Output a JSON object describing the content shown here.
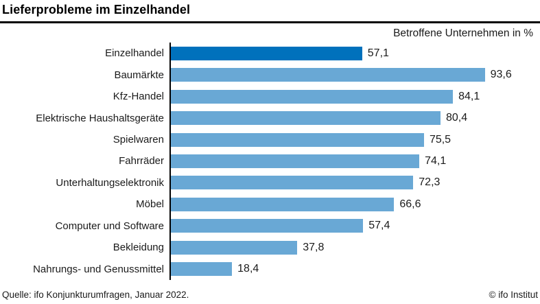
{
  "header": {
    "title": "Lieferprobleme im Einzelhandel"
  },
  "subtitle": "Betroffene Unternehmen in %",
  "footer": {
    "source": "Quelle: ifo Konjunkturumfragen, Januar 2022.",
    "copyright": "© ifo Institut"
  },
  "colors": {
    "highlight_bar": "#0071BC",
    "bar": "#69A8D5",
    "axis": "#000000",
    "title_rule": "#000000"
  },
  "chart_data": {
    "type": "bar",
    "orientation": "horizontal",
    "title": "Lieferprobleme im Einzelhandel",
    "xlabel": "Betroffene Unternehmen in %",
    "categories": [
      "Einzelhandel",
      "Baumärkte",
      "Kfz-Handel",
      "Elektrische Haushaltsgeräte",
      "Spielwaren",
      "Fahrräder",
      "Unterhaltungselektronik",
      "Möbel",
      "Computer und Software",
      "Bekleidung",
      "Nahrungs- und Genussmittel"
    ],
    "values": [
      57.1,
      93.6,
      84.1,
      80.4,
      75.5,
      74.1,
      72.3,
      66.6,
      57.4,
      37.8,
      18.4
    ],
    "display_values": [
      "57,1",
      "93,6",
      "84,1",
      "80,4",
      "75,5",
      "74,1",
      "72,3",
      "66,6",
      "57,4",
      "37,8",
      "18,4"
    ],
    "highlight_index": 0,
    "xlim": [
      0,
      100
    ],
    "grid": false,
    "legend": "none",
    "value_labels": "end-of-bar"
  }
}
